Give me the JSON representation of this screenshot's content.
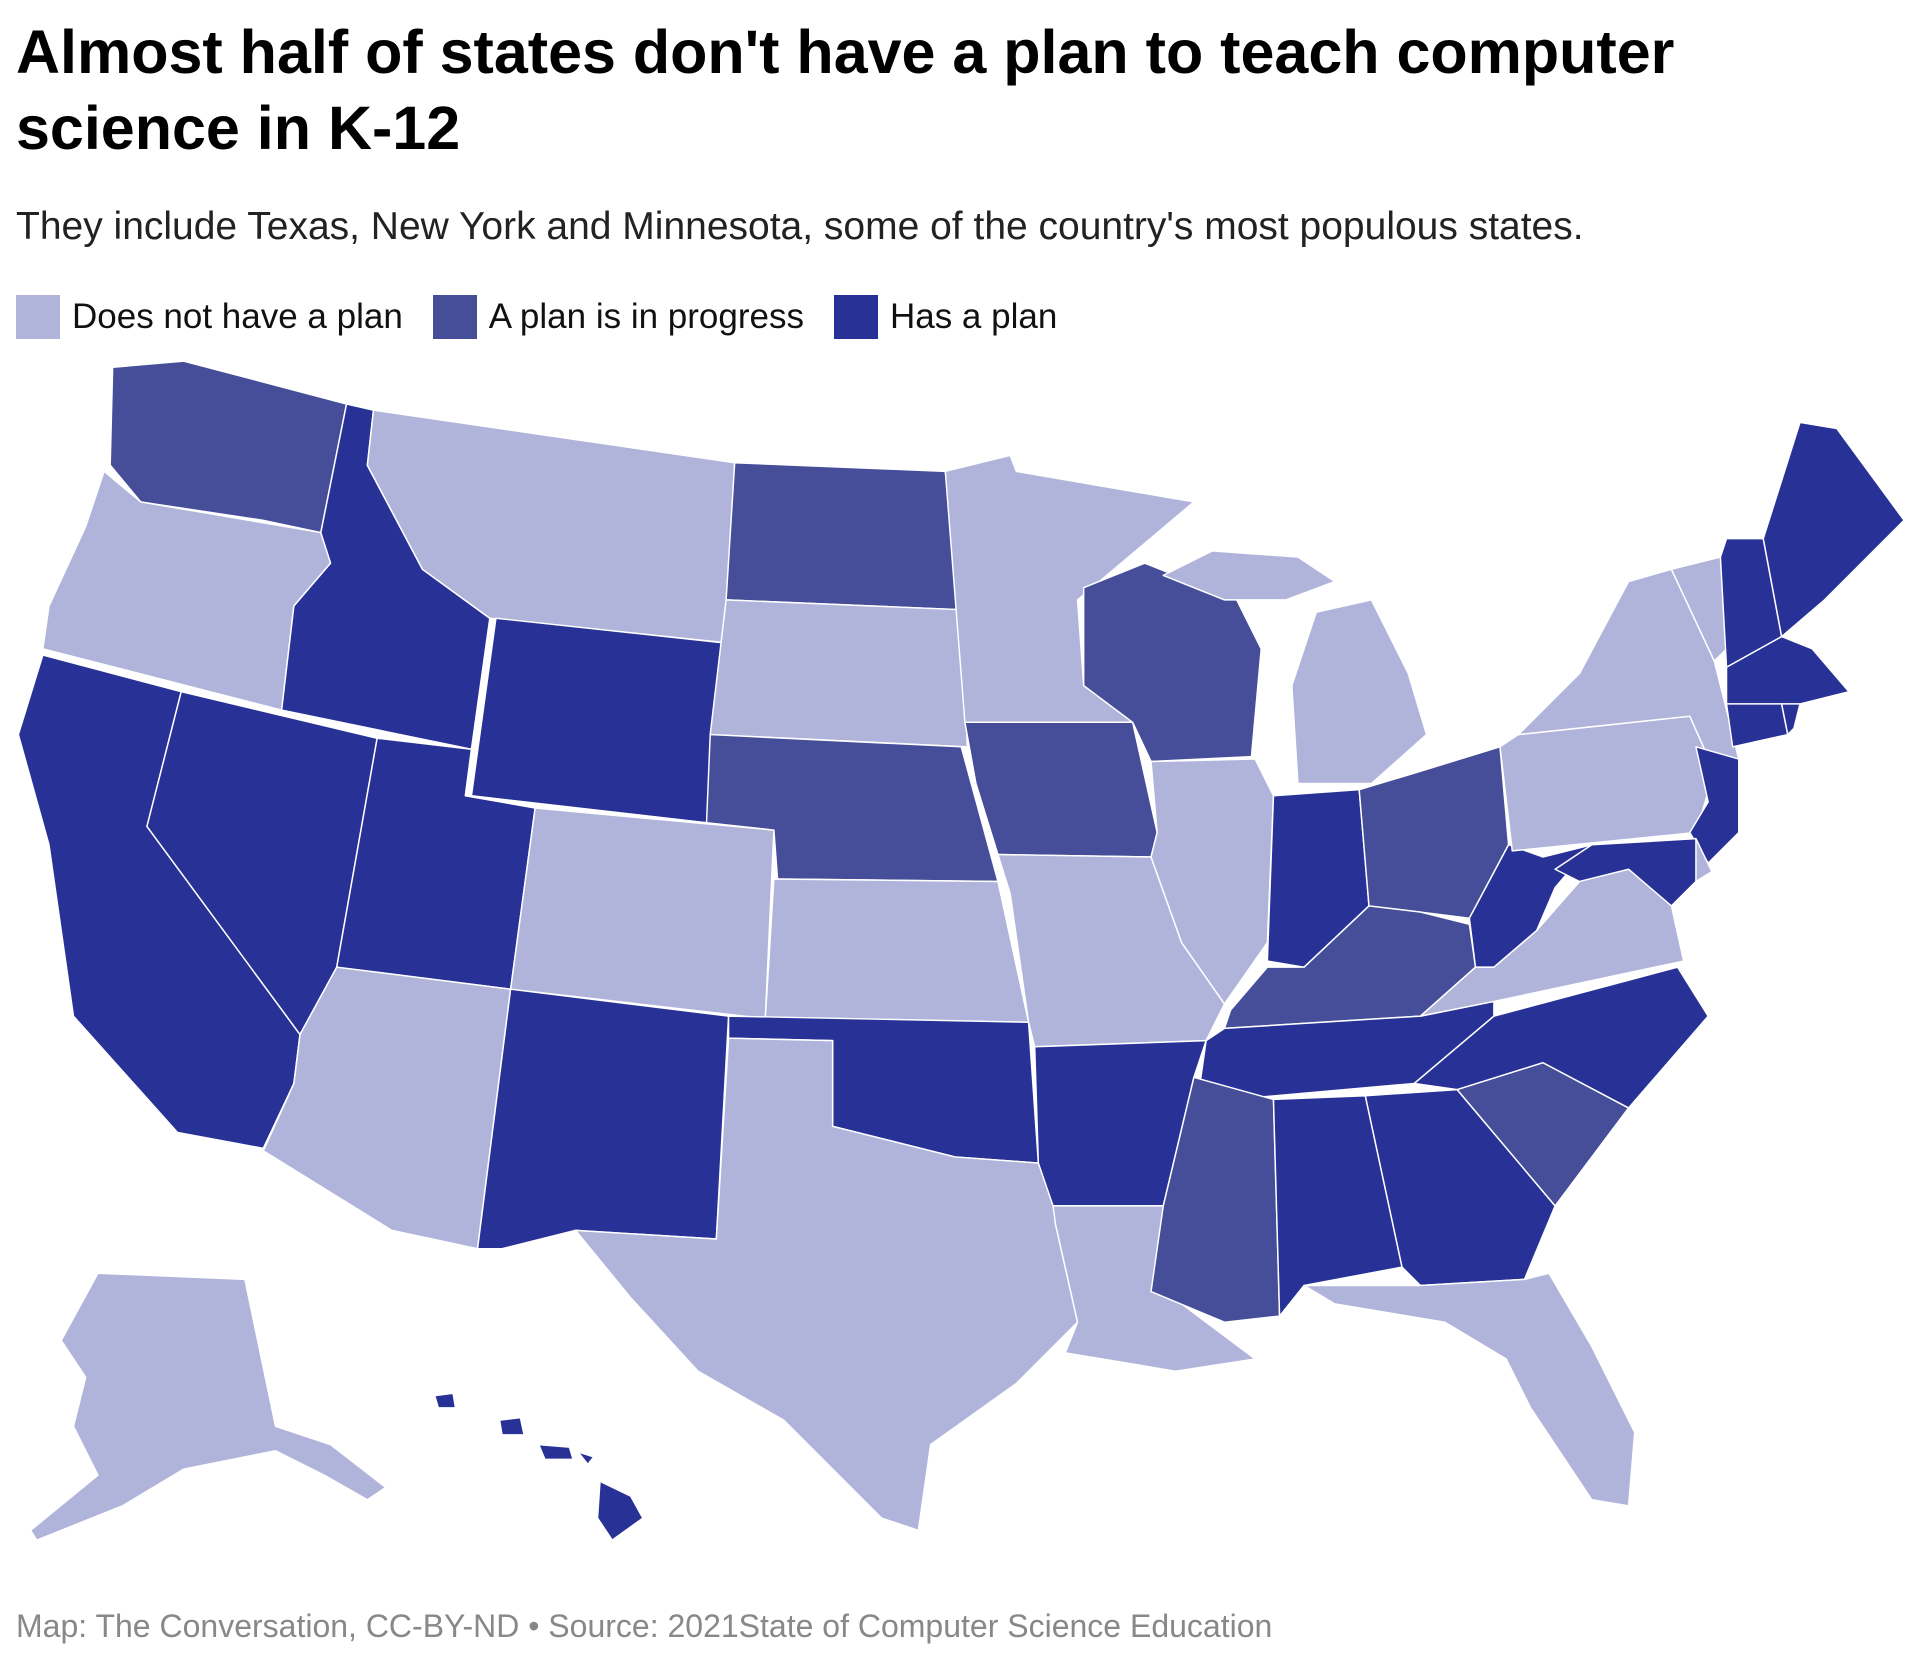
{
  "title": "Almost half of states don't have a plan to teach computer science in K-12",
  "subtitle": "They include Texas, New York and Minnesota, some of the country's most populous states.",
  "legend": [
    {
      "key": "none",
      "label": "Does not have a plan",
      "color": "#b0b4db"
    },
    {
      "key": "progress",
      "label": "A plan is in progress",
      "color": "#464e9a"
    },
    {
      "key": "plan",
      "label": "Has a plan",
      "color": "#283296"
    }
  ],
  "states": {
    "WA": "progress",
    "OR": "none",
    "CA": "plan",
    "NV": "plan",
    "ID": "plan",
    "MT": "none",
    "WY": "plan",
    "UT": "plan",
    "CO": "none",
    "AZ": "none",
    "NM": "plan",
    "ND": "progress",
    "SD": "none",
    "NE": "progress",
    "KS": "none",
    "OK": "plan",
    "TX": "none",
    "MN": "none",
    "IA": "progress",
    "MO": "none",
    "AR": "plan",
    "LA": "none",
    "WI": "progress",
    "IL": "none",
    "MI": "none",
    "IN": "plan",
    "OH": "progress",
    "KY": "progress",
    "TN": "plan",
    "MS": "progress",
    "AL": "plan",
    "GA": "plan",
    "FL": "none",
    "SC": "progress",
    "NC": "plan",
    "VA": "none",
    "WV": "plan",
    "PA": "none",
    "NY": "none",
    "VT": "none",
    "NH": "plan",
    "ME": "plan",
    "MA": "plan",
    "CT": "plan",
    "RI": "plan",
    "NJ": "plan",
    "DE": "none",
    "MD": "plan",
    "AK": "none",
    "HI": "plan"
  },
  "footer": "Map: The Conversation, CC-BY-ND • Source: 2021State of Computer Science Education"
}
